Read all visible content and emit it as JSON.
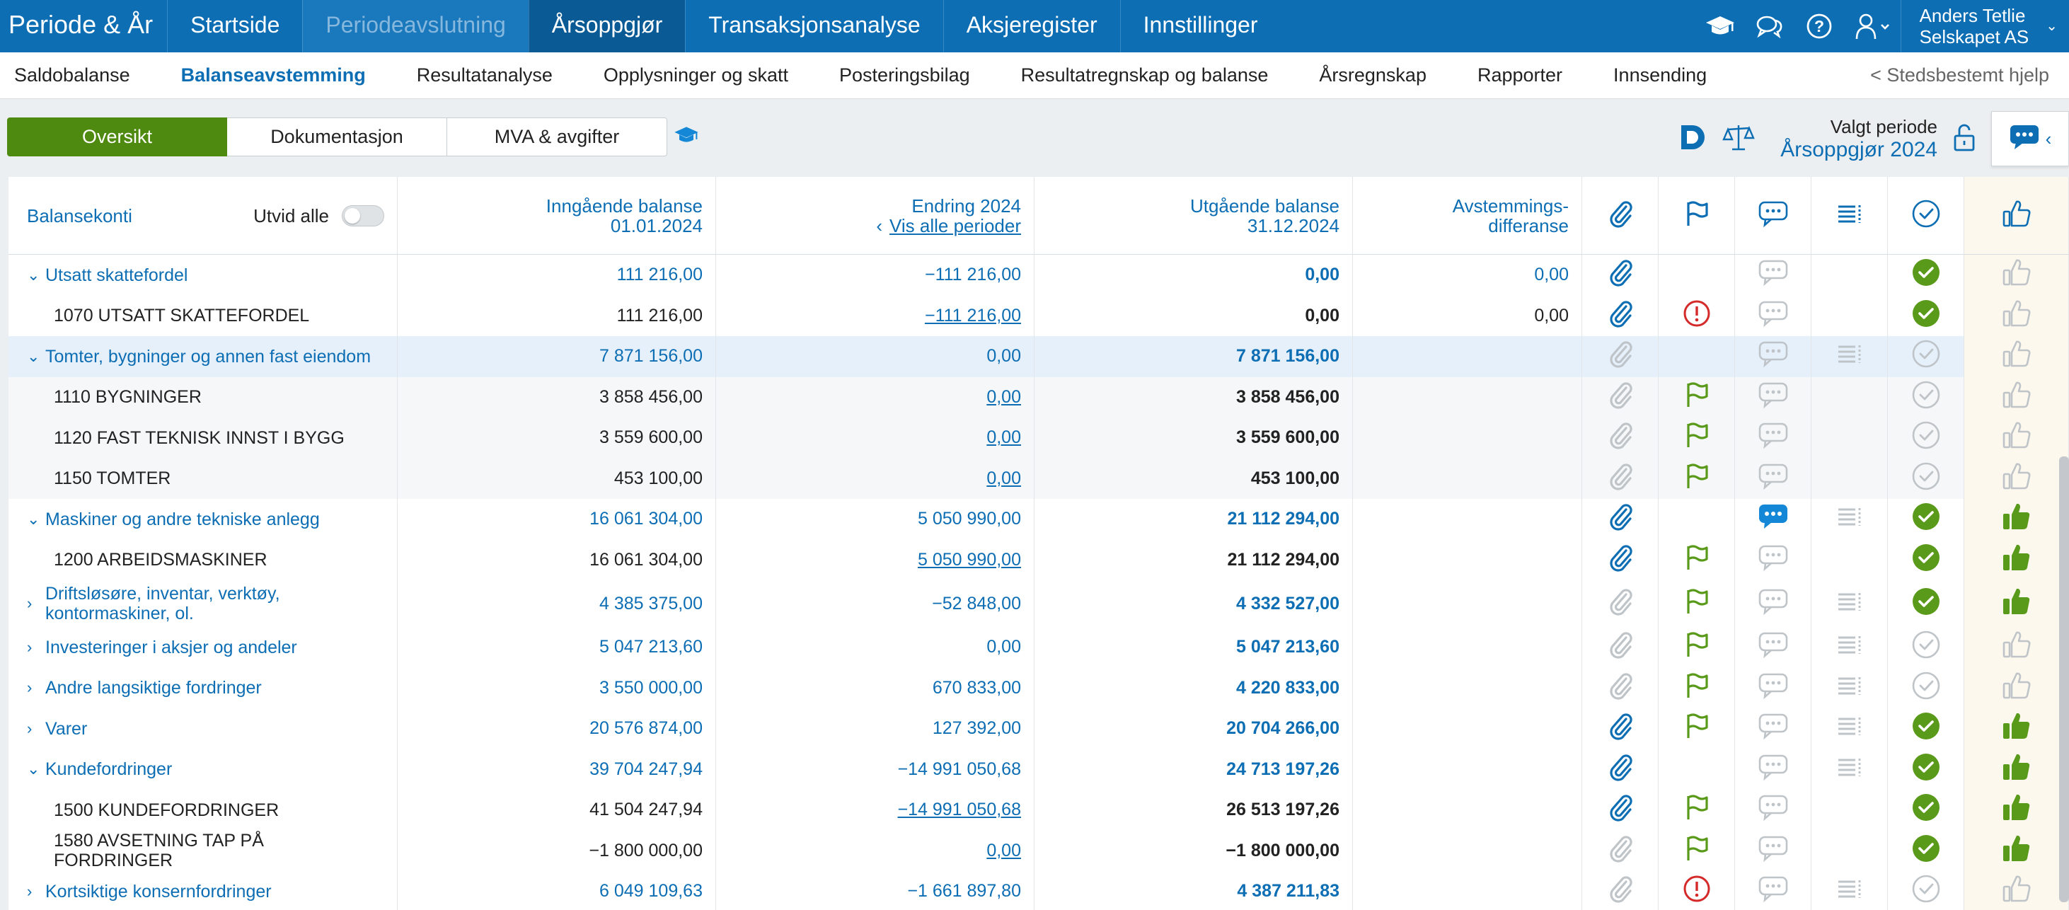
{
  "brand": "Periode & År",
  "topnav": [
    {
      "label": "Startside",
      "state": "normal"
    },
    {
      "label": "Periodeavslutning",
      "state": "muted"
    },
    {
      "label": "Årsoppgjør",
      "state": "active"
    },
    {
      "label": "Transaksjonsanalyse",
      "state": "normal"
    },
    {
      "label": "Aksjeregister",
      "state": "normal"
    },
    {
      "label": "Innstillinger",
      "state": "normal"
    }
  ],
  "user": {
    "name": "Anders Tetlie",
    "company": "Selskapet AS"
  },
  "subnav": {
    "items": [
      "Saldobalanse",
      "Balanseavstemming",
      "Resultatanalyse",
      "Opplysninger og skatt",
      "Posteringsbilag",
      "Resultatregnskap og balanse",
      "Årsregnskap",
      "Rapporter",
      "Innsending"
    ],
    "active_index": 1,
    "help": "< Stedsbestemt hjelp"
  },
  "segments": {
    "items": [
      "Oversikt",
      "Dokumentasjon",
      "MVA & avgifter"
    ],
    "active_index": 0
  },
  "period": {
    "label": "Valgt periode",
    "value": "Årsoppgjør 2024"
  },
  "table": {
    "header": {
      "accounts": "Balansekonti",
      "expand_all": "Utvid alle",
      "opening": [
        "Inngående balanse",
        "01.01.2024"
      ],
      "change": [
        "Endring 2024",
        "Vis alle perioder"
      ],
      "change_prefix": "‹",
      "closing": [
        "Utgående balanse",
        "31.12.2024"
      ],
      "diff": [
        "Avstemmings-",
        "differanse"
      ]
    },
    "rows": [
      {
        "type": "group",
        "chev": "⌄",
        "name": "Utsatt skattefordel",
        "open": "111 216,00",
        "change": "−111 216,00",
        "close": "0,00",
        "diff": "0,00",
        "clip": "on",
        "flag": "",
        "comment": "off",
        "list": "",
        "check": "green",
        "thumb": "off"
      },
      {
        "type": "acct",
        "name": "1070 UTSATT SKATTEFORDEL",
        "open": "111 216,00",
        "change": "−111 216,00",
        "change_link": true,
        "close": "0,00",
        "diff": "0,00",
        "clip": "on",
        "flag": "alert",
        "comment": "off",
        "list": "",
        "check": "green",
        "thumb": "off"
      },
      {
        "type": "group",
        "chev": "⌄",
        "name": "Tomter, bygninger og annen fast eiendom",
        "open": "7 871 156,00",
        "change": "0,00",
        "close": "7 871 156,00",
        "diff": "",
        "clip": "off",
        "flag": "",
        "comment": "off",
        "list": "off",
        "check": "off",
        "thumb": "off",
        "selected": true
      },
      {
        "type": "acct",
        "name": "1110 BYGNINGER",
        "open": "3 858 456,00",
        "change": "0,00",
        "change_link": true,
        "close": "3 858 456,00",
        "diff": "",
        "clip": "off",
        "flag": "green",
        "comment": "off",
        "list": "",
        "check": "off",
        "thumb": "off",
        "sub": true
      },
      {
        "type": "acct",
        "name": "1120 FAST TEKNISK INNST I BYGG",
        "open": "3 559 600,00",
        "change": "0,00",
        "change_link": true,
        "close": "3 559 600,00",
        "diff": "",
        "clip": "off",
        "flag": "green",
        "comment": "off",
        "list": "",
        "check": "off",
        "thumb": "off",
        "sub": true
      },
      {
        "type": "acct",
        "name": "1150 TOMTER",
        "open": "453 100,00",
        "change": "0,00",
        "change_link": true,
        "close": "453 100,00",
        "diff": "",
        "clip": "off",
        "flag": "green",
        "comment": "off",
        "list": "",
        "check": "off",
        "thumb": "off",
        "sub": true
      },
      {
        "type": "group",
        "chev": "⌄",
        "name": "Maskiner og andre tekniske anlegg",
        "open": "16 061 304,00",
        "change": "5 050 990,00",
        "close": "21 112 294,00",
        "diff": "",
        "clip": "on",
        "flag": "",
        "comment": "blue",
        "list": "off",
        "check": "green",
        "thumb": "green"
      },
      {
        "type": "acct",
        "name": "1200 ARBEIDSMASKINER",
        "open": "16 061 304,00",
        "change": "5 050 990,00",
        "change_link": true,
        "close": "21 112 294,00",
        "diff": "",
        "clip": "on",
        "flag": "green",
        "comment": "off",
        "list": "",
        "check": "green",
        "thumb": "green"
      },
      {
        "type": "group",
        "chev": "›",
        "name": "Driftsløsøre, inventar, verktøy, kontormaskiner, ol.",
        "open": "4 385 375,00",
        "change": "−52 848,00",
        "close": "4 332 527,00",
        "diff": "",
        "clip": "off",
        "flag": "green",
        "comment": "off",
        "list": "off",
        "check": "green",
        "thumb": "green",
        "tall": true
      },
      {
        "type": "group",
        "chev": "›",
        "name": "Investeringer i aksjer og andeler",
        "open": "5 047 213,60",
        "change": "0,00",
        "close": "5 047 213,60",
        "diff": "",
        "clip": "off",
        "flag": "green",
        "comment": "off",
        "list": "off",
        "check": "off",
        "thumb": "off"
      },
      {
        "type": "group",
        "chev": "›",
        "name": "Andre langsiktige fordringer",
        "open": "3 550 000,00",
        "change": "670 833,00",
        "close": "4 220 833,00",
        "diff": "",
        "clip": "off",
        "flag": "green",
        "comment": "off",
        "list": "off",
        "check": "off",
        "thumb": "off"
      },
      {
        "type": "group",
        "chev": "›",
        "name": "Varer",
        "open": "20 576 874,00",
        "change": "127 392,00",
        "close": "20 704 266,00",
        "diff": "",
        "clip": "on",
        "flag": "green",
        "comment": "off",
        "list": "off",
        "check": "green",
        "thumb": "green"
      },
      {
        "type": "group",
        "chev": "⌄",
        "name": "Kundefordringer",
        "open": "39 704 247,94",
        "change": "−14 991 050,68",
        "close": "24 713 197,26",
        "diff": "",
        "clip": "on",
        "flag": "",
        "comment": "off",
        "list": "off",
        "check": "green",
        "thumb": "green"
      },
      {
        "type": "acct",
        "name": "1500 KUNDEFORDRINGER",
        "open": "41 504 247,94",
        "change": "−14 991 050,68",
        "change_link": true,
        "close": "26 513 197,26",
        "diff": "",
        "clip": "on",
        "flag": "green",
        "comment": "off",
        "list": "",
        "check": "green",
        "thumb": "green"
      },
      {
        "type": "acct",
        "name": "1580 AVSETNING TAP PÅ FORDRINGER",
        "open": "−1 800 000,00",
        "change": "0,00",
        "change_link": true,
        "close": "−1 800 000,00",
        "diff": "",
        "clip": "off",
        "flag": "green",
        "comment": "off",
        "list": "",
        "check": "green",
        "thumb": "green"
      },
      {
        "type": "group",
        "chev": "›",
        "name": "Kortsiktige konsernfordringer",
        "open": "6 049 109,63",
        "change": "−1 661 897,80",
        "close": "4 387 211,83",
        "diff": "",
        "clip": "off",
        "flag": "alert",
        "comment": "off",
        "list": "off",
        "check": "off",
        "thumb": "off"
      }
    ]
  },
  "colors": {
    "brand_blue": "#0d6eb4",
    "green": "#4f8a10",
    "check_green": "#5a9a1a",
    "alert_red": "#d42a2a",
    "inactive_gray": "#bfc4c8"
  }
}
